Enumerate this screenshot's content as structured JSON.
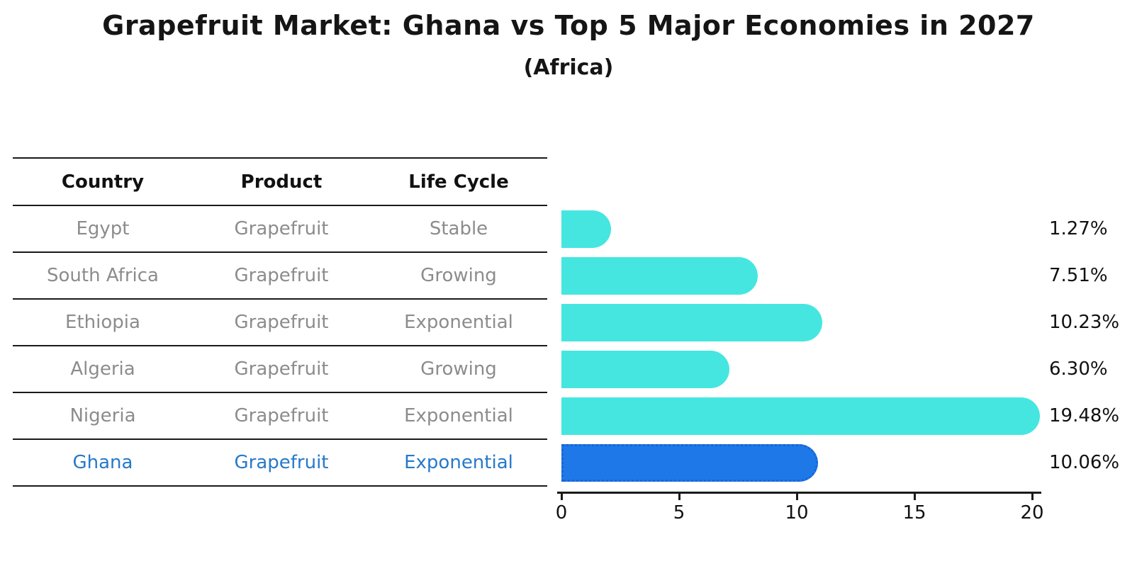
{
  "title": "Grapefruit Market: Ghana vs Top 5 Major Economies in 2027",
  "subtitle": "(Africa)",
  "table": {
    "headers": [
      "Country",
      "Product",
      "Life Cycle"
    ],
    "rows": [
      {
        "country": "Egypt",
        "product": "Grapefruit",
        "life_cycle": "Stable",
        "highlight": false
      },
      {
        "country": "South Africa",
        "product": "Grapefruit",
        "life_cycle": "Growing",
        "highlight": false
      },
      {
        "country": "Ethiopia",
        "product": "Grapefruit",
        "life_cycle": "Exponential",
        "highlight": false
      },
      {
        "country": "Algeria",
        "product": "Grapefruit",
        "life_cycle": "Growing",
        "highlight": false
      },
      {
        "country": "Nigeria",
        "product": "Grapefruit",
        "life_cycle": "Exponential",
        "highlight": false
      },
      {
        "country": "Ghana",
        "product": "Grapefruit",
        "life_cycle": "Exponential",
        "highlight": true
      }
    ]
  },
  "chart_data": {
    "type": "bar",
    "orientation": "horizontal",
    "title": "Grapefruit Market: Ghana vs Top 5 Major Economies in 2027",
    "subtitle": "(Africa)",
    "categories": [
      "Egypt",
      "South Africa",
      "Ethiopia",
      "Algeria",
      "Nigeria",
      "Ghana"
    ],
    "values": [
      1.27,
      7.51,
      10.23,
      6.3,
      19.48,
      10.06
    ],
    "value_labels": [
      "1.27%",
      "7.51%",
      "10.23%",
      "6.30%",
      "19.48%",
      "10.06%"
    ],
    "highlight_category": "Ghana",
    "xlim": [
      0,
      20
    ],
    "x_ticks": [
      "0",
      "5",
      "10",
      "15",
      "20"
    ],
    "grid": false,
    "legend": false,
    "colors": {
      "bar": "#45e6e0",
      "highlight_bar": "#1e78e8",
      "highlight_bar_border": "#1a64d6",
      "highlight_text": "#2779c9",
      "row_text": "#8c8c8c",
      "header_text": "#111111",
      "axis_text": "#111111"
    }
  }
}
